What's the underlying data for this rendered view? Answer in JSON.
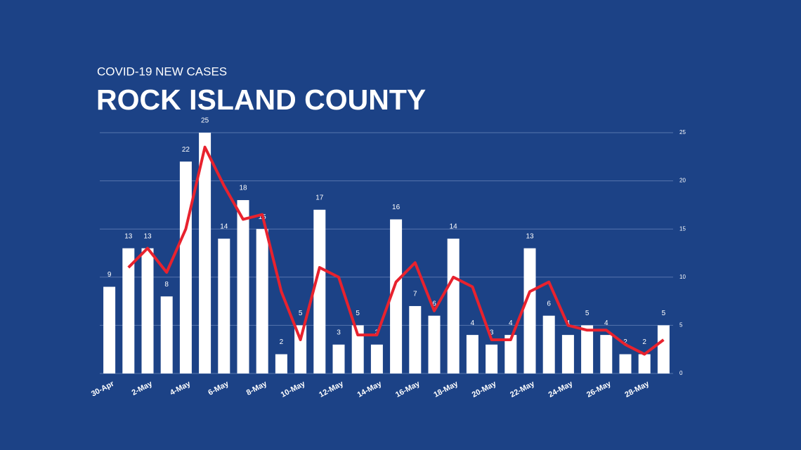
{
  "chart_data": {
    "type": "bar",
    "subtitle": "COVID-19 NEW CASES",
    "title": "ROCK ISLAND COUNTY",
    "categories": [
      "30-Apr",
      null,
      "2-May",
      null,
      "4-May",
      null,
      "6-May",
      null,
      "8-May",
      null,
      "10-May",
      null,
      "12-May",
      null,
      "14-May",
      null,
      "16-May",
      null,
      "18-May",
      null,
      "20-May",
      null,
      "22-May",
      null,
      "24-May",
      null,
      "26-May",
      null,
      "28-May",
      null
    ],
    "series": [
      {
        "type": "bar",
        "color": "#ffffff",
        "values": [
          9,
          13,
          13,
          8,
          22,
          25,
          14,
          18,
          15,
          2,
          5,
          17,
          3,
          5,
          3,
          16,
          7,
          6,
          14,
          4,
          3,
          4,
          13,
          6,
          4,
          5,
          4,
          2,
          2,
          5
        ]
      },
      {
        "type": "line",
        "color": "#e8222e",
        "values": [
          null,
          11,
          13,
          10.5,
          15,
          23.5,
          19.5,
          16,
          16.5,
          8.5,
          3.5,
          11,
          10,
          4,
          4,
          9.5,
          11.5,
          6.5,
          10,
          9,
          3.5,
          3.5,
          8.5,
          9.5,
          5,
          4.5,
          4.5,
          3,
          2,
          3.5
        ]
      }
    ],
    "ylim": [
      0,
      25
    ],
    "yticks": [
      0,
      5,
      10,
      15,
      20,
      25
    ],
    "grid": true
  }
}
